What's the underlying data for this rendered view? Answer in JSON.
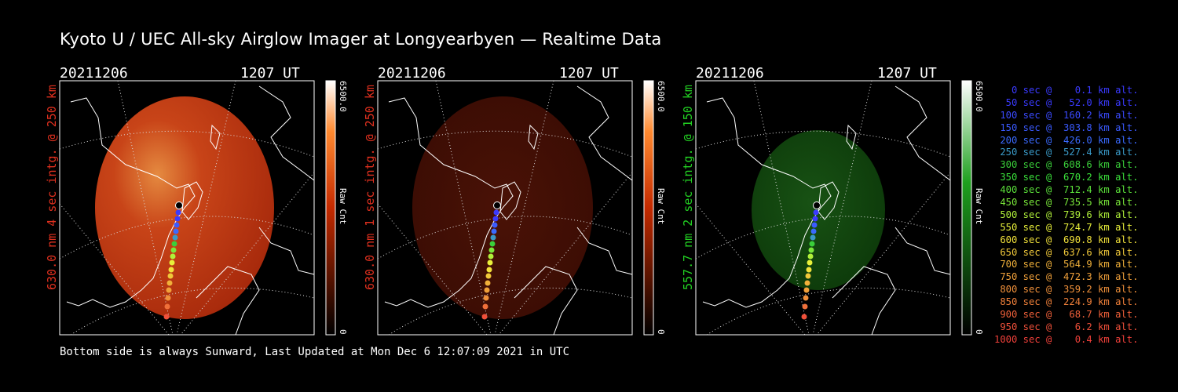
{
  "title": "Kyoto U / UEC All-sky Airglow Imager at Longyearbyen — Realtime Data",
  "footer": "Bottom side is always Sunward, Last Updated at Mon Dec  6 12:07:09 2021 in UTC",
  "panels": [
    {
      "date": "20211206",
      "time": "1207 UT",
      "side_label": "630.0 nm 4 sec intg. @ 250 km",
      "side_color": "#e0301e",
      "cbar_max": "6500.0",
      "cbar_min": "0",
      "cbar_label": "Raw Cnt",
      "cbar_color": "#ff3a00",
      "image_tint": "#b33010"
    },
    {
      "date": "20211206",
      "time": "1207 UT",
      "side_label": "630.0 nm 1 sec intg. @ 250 km",
      "side_color": "#e0301e",
      "cbar_max": "6500.0",
      "cbar_min": "0",
      "cbar_label": "Raw Cnt",
      "cbar_color": "#ff3a00",
      "image_tint": "#3a0c04"
    },
    {
      "date": "20211206",
      "time": "1207 UT",
      "side_label": "557.7 nm 2 sec intg. @ 150 km",
      "side_color": "#22d022",
      "cbar_max": "6500.0",
      "cbar_min": "0",
      "cbar_label": "Raw Cnt",
      "cbar_color": "#22c022",
      "image_tint": "#0f3a0c"
    }
  ],
  "legend": [
    {
      "text": "   0 sec @    0.1 km alt.",
      "color": "#3a3aff"
    },
    {
      "text": "  50 sec @   52.0 km alt.",
      "color": "#3a3aff"
    },
    {
      "text": " 100 sec @  160.2 km alt.",
      "color": "#3a4aff"
    },
    {
      "text": " 150 sec @  303.8 km alt.",
      "color": "#3a5aff"
    },
    {
      "text": " 200 sec @  426.0 km alt.",
      "color": "#3a6aff"
    },
    {
      "text": " 250 sec @  527.4 km alt.",
      "color": "#3a9ac8"
    },
    {
      "text": " 300 sec @  608.6 km alt.",
      "color": "#3ad03a"
    },
    {
      "text": " 350 sec @  670.2 km alt.",
      "color": "#3ae03a"
    },
    {
      "text": " 400 sec @  712.4 km alt.",
      "color": "#5ae03a"
    },
    {
      "text": " 450 sec @  735.5 km alt.",
      "color": "#7ae83a"
    },
    {
      "text": " 500 sec @  739.6 km alt.",
      "color": "#b0f03a"
    },
    {
      "text": " 550 sec @  724.7 km alt.",
      "color": "#e8f03a"
    },
    {
      "text": " 600 sec @  690.8 km alt.",
      "color": "#f0e03a"
    },
    {
      "text": " 650 sec @  637.6 km alt.",
      "color": "#f0c83a"
    },
    {
      "text": " 700 sec @  564.9 km alt.",
      "color": "#f0b03a"
    },
    {
      "text": " 750 sec @  472.3 km alt.",
      "color": "#f0a03a"
    },
    {
      "text": " 800 sec @  359.2 km alt.",
      "color": "#f0903a"
    },
    {
      "text": " 850 sec @  224.9 km alt.",
      "color": "#f0803a"
    },
    {
      "text": " 900 sec @   68.7 km alt.",
      "color": "#f0603a"
    },
    {
      "text": " 950 sec @    6.2 km alt.",
      "color": "#f0503a"
    },
    {
      "text": "1000 sec @    0.4 km alt.",
      "color": "#f0403a"
    }
  ]
}
